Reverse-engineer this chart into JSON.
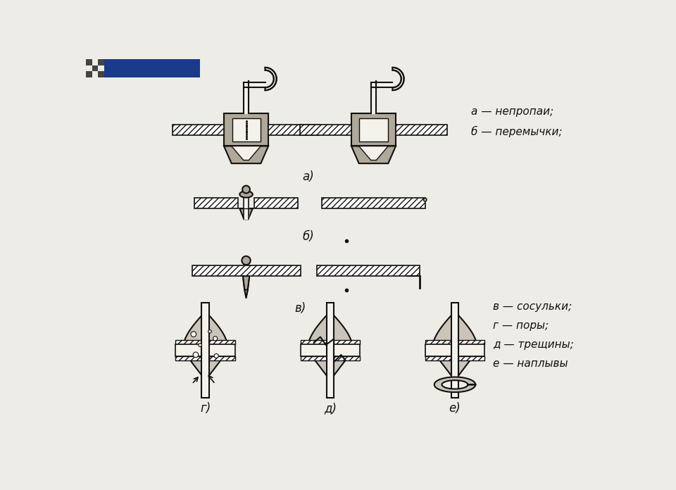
{
  "background_color": "#eeece6",
  "label_a_b": "а — непропаи;\nб — перемычки;",
  "label_vgde": "в — сосульки;\nг — поры;\nд — трещины;\nе — наплывы",
  "sublabel_a": "а)",
  "sublabel_b": "б)",
  "sublabel_v": "в)",
  "sublabel_g": "г)",
  "sublabel_d": "д)",
  "sublabel_e": "е)",
  "font_size_labels": 11,
  "font_size_sublabels": 11,
  "text_color": "#111111",
  "lc": "#111111",
  "fc_gray": "#b0a898",
  "fc_light": "#ccc4b8",
  "wc": "#f5f2ec",
  "blue": "#1a3a8a",
  "dark": "#444444"
}
